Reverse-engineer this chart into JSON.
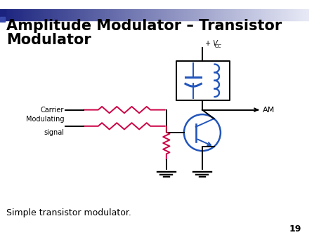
{
  "title_line1": "Amplitude Modulator – Transistor",
  "title_line2": "Modulator",
  "title_fontsize": 15,
  "title_color": "#000000",
  "subtitle": "Simple transistor modulator.",
  "subtitle_fontsize": 9,
  "page_number": "19",
  "bg_color": "#ffffff",
  "header_gradient_left": "#1a237e",
  "header_gradient_right": "#e8eaf6",
  "resistor_color": "#cc0044",
  "wire_color": "#000000",
  "transistor_color": "#2255bb",
  "inductor_color": "#2255bb",
  "capacitor_color": "#2255bb",
  "label_carrier": "Carrier",
  "label_mod": "Modulating\nsignal",
  "label_am": "AM",
  "label_vcc": "+ V",
  "label_vcc_sub": "CC",
  "lw": 1.4
}
